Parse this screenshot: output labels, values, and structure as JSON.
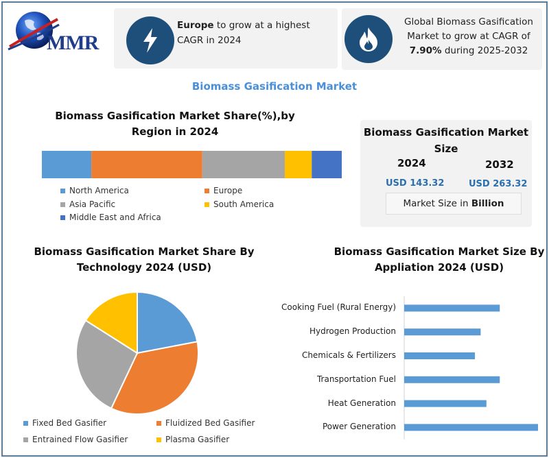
{
  "brand": {
    "logo_text": "MMR"
  },
  "card1": {
    "bold": "Europe",
    "text": " to grow at a highest CAGR in 2024"
  },
  "card2": {
    "pre": "Global Biomass Gasification Market to grow at CAGR of ",
    "bold": "7.90%",
    "post": " during 2025-2032"
  },
  "main_title": "Biomass Gasification Market",
  "market_size": {
    "title": "Biomass Gasification Market Size",
    "year1": "2024",
    "value1": "USD 143.32",
    "year2": "2032",
    "value2": "USD 263.32",
    "unit_pre": "Market Size in ",
    "unit_bold": "Billion"
  },
  "colors": {
    "blue": "#5b9bd5",
    "orange": "#ed7d31",
    "gray": "#a5a5a5",
    "yellow": "#ffc000",
    "darkblue": "#4472c4",
    "icon_circle": "#1d4f7a"
  },
  "chart_data": [
    {
      "type": "bar",
      "orientation": "horizontal-stacked",
      "title": "Biomass Gasification Market Share(%),by Region in 2024",
      "series": [
        {
          "name": "North America",
          "value": 16.5
        },
        {
          "name": "Europe",
          "value": 37
        },
        {
          "name": "Asia Pacific",
          "value": 27.5
        },
        {
          "name": "South America",
          "value": 9
        },
        {
          "name": "Middle East and Africa",
          "value": 10
        }
      ],
      "legend": "bottom"
    },
    {
      "type": "pie",
      "title": "Biomass Gasification Market  Share By Technology 2024  (USD)",
      "slices": [
        {
          "name": "Fixed Bed Gasifier",
          "value": 22
        },
        {
          "name": "Fluidized Bed Gasifier",
          "value": 35
        },
        {
          "name": "Entrained Flow Gasifier",
          "value": 27
        },
        {
          "name": "Plasma Gasifier",
          "value": 16
        }
      ],
      "legend": "bottom"
    },
    {
      "type": "bar",
      "orientation": "horizontal",
      "title": "Biomass Gasification Market Size By Appliation 2024  (USD)",
      "categories": [
        "Cooking Fuel (Rural Energy)",
        "Hydrogen Production",
        "Chemicals & Fertilizers",
        "Transportation Fuel",
        "Heat Generation",
        "Power Generation"
      ],
      "values": [
        25,
        20,
        18.5,
        25,
        21.5,
        35
      ]
    }
  ]
}
